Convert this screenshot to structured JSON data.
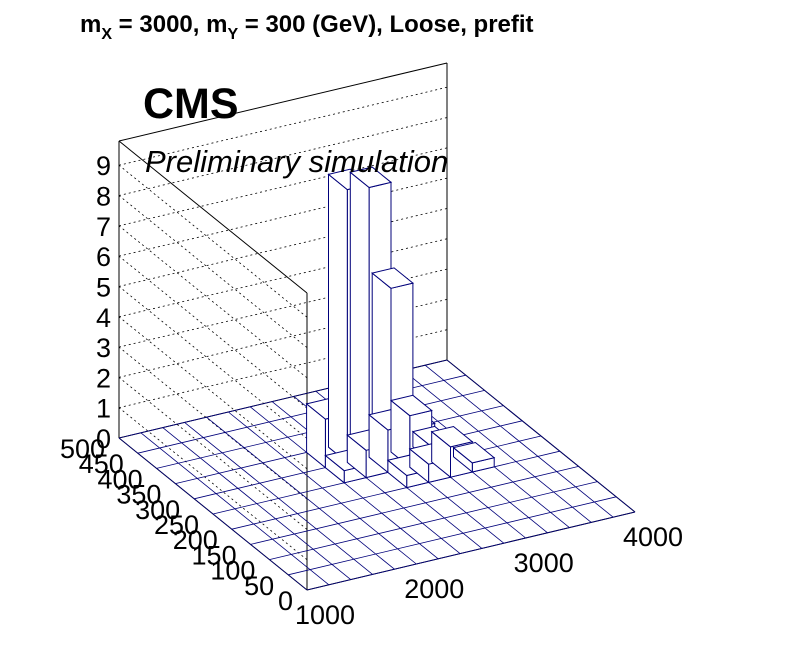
{
  "title": {
    "p1": "m",
    "s1": "X",
    "p2": " = 3000, m",
    "s2": "Y",
    "p3": " = 300 (GeV), Loose, prefit"
  },
  "cms_label": "CMS",
  "sub_label": "Preliminary simulation",
  "chart_data": {
    "type": "lego",
    "x_ticks": [
      "1000",
      "2000",
      "3000",
      "4000"
    ],
    "y_ticks": [
      "0",
      "50",
      "100",
      "150",
      "200",
      "250",
      "300",
      "350",
      "400",
      "450",
      "500"
    ],
    "z_ticks": [
      "0",
      "1",
      "2",
      "3",
      "4",
      "5",
      "6",
      "7",
      "8",
      "9"
    ],
    "xlim": [
      1000,
      4000
    ],
    "ylim": [
      0,
      500
    ],
    "zlim": [
      0,
      9.8
    ],
    "bin_size": {
      "x": 200,
      "y": 50
    },
    "bins": [
      {
        "x": 2600,
        "y": 300,
        "z": 8.9
      },
      {
        "x": 2400,
        "y": 300,
        "z": 9.0
      },
      {
        "x": 2800,
        "y": 300,
        "z": 5.4
      },
      {
        "x": 2600,
        "y": 250,
        "z": 1.4
      },
      {
        "x": 2600,
        "y": 350,
        "z": 1.2
      },
      {
        "x": 2400,
        "y": 350,
        "z": 0.6
      },
      {
        "x": 2800,
        "y": 350,
        "z": 0.4
      },
      {
        "x": 2200,
        "y": 300,
        "z": 1.6
      },
      {
        "x": 3000,
        "y": 300,
        "z": 0.6
      },
      {
        "x": 2400,
        "y": 250,
        "z": 0.9
      },
      {
        "x": 2800,
        "y": 250,
        "z": 1.7
      },
      {
        "x": 2600,
        "y": 200,
        "z": 0.4
      },
      {
        "x": 2800,
        "y": 200,
        "z": 0.6
      },
      {
        "x": 3000,
        "y": 200,
        "z": 1.0
      },
      {
        "x": 3200,
        "y": 200,
        "z": 0.3
      },
      {
        "x": 2200,
        "y": 250,
        "z": 0.4
      },
      {
        "x": 3000,
        "y": 250,
        "z": 0.5
      }
    ],
    "grid": true
  },
  "colors": {
    "bin_edge": "#00007a",
    "axis": "#000000"
  }
}
